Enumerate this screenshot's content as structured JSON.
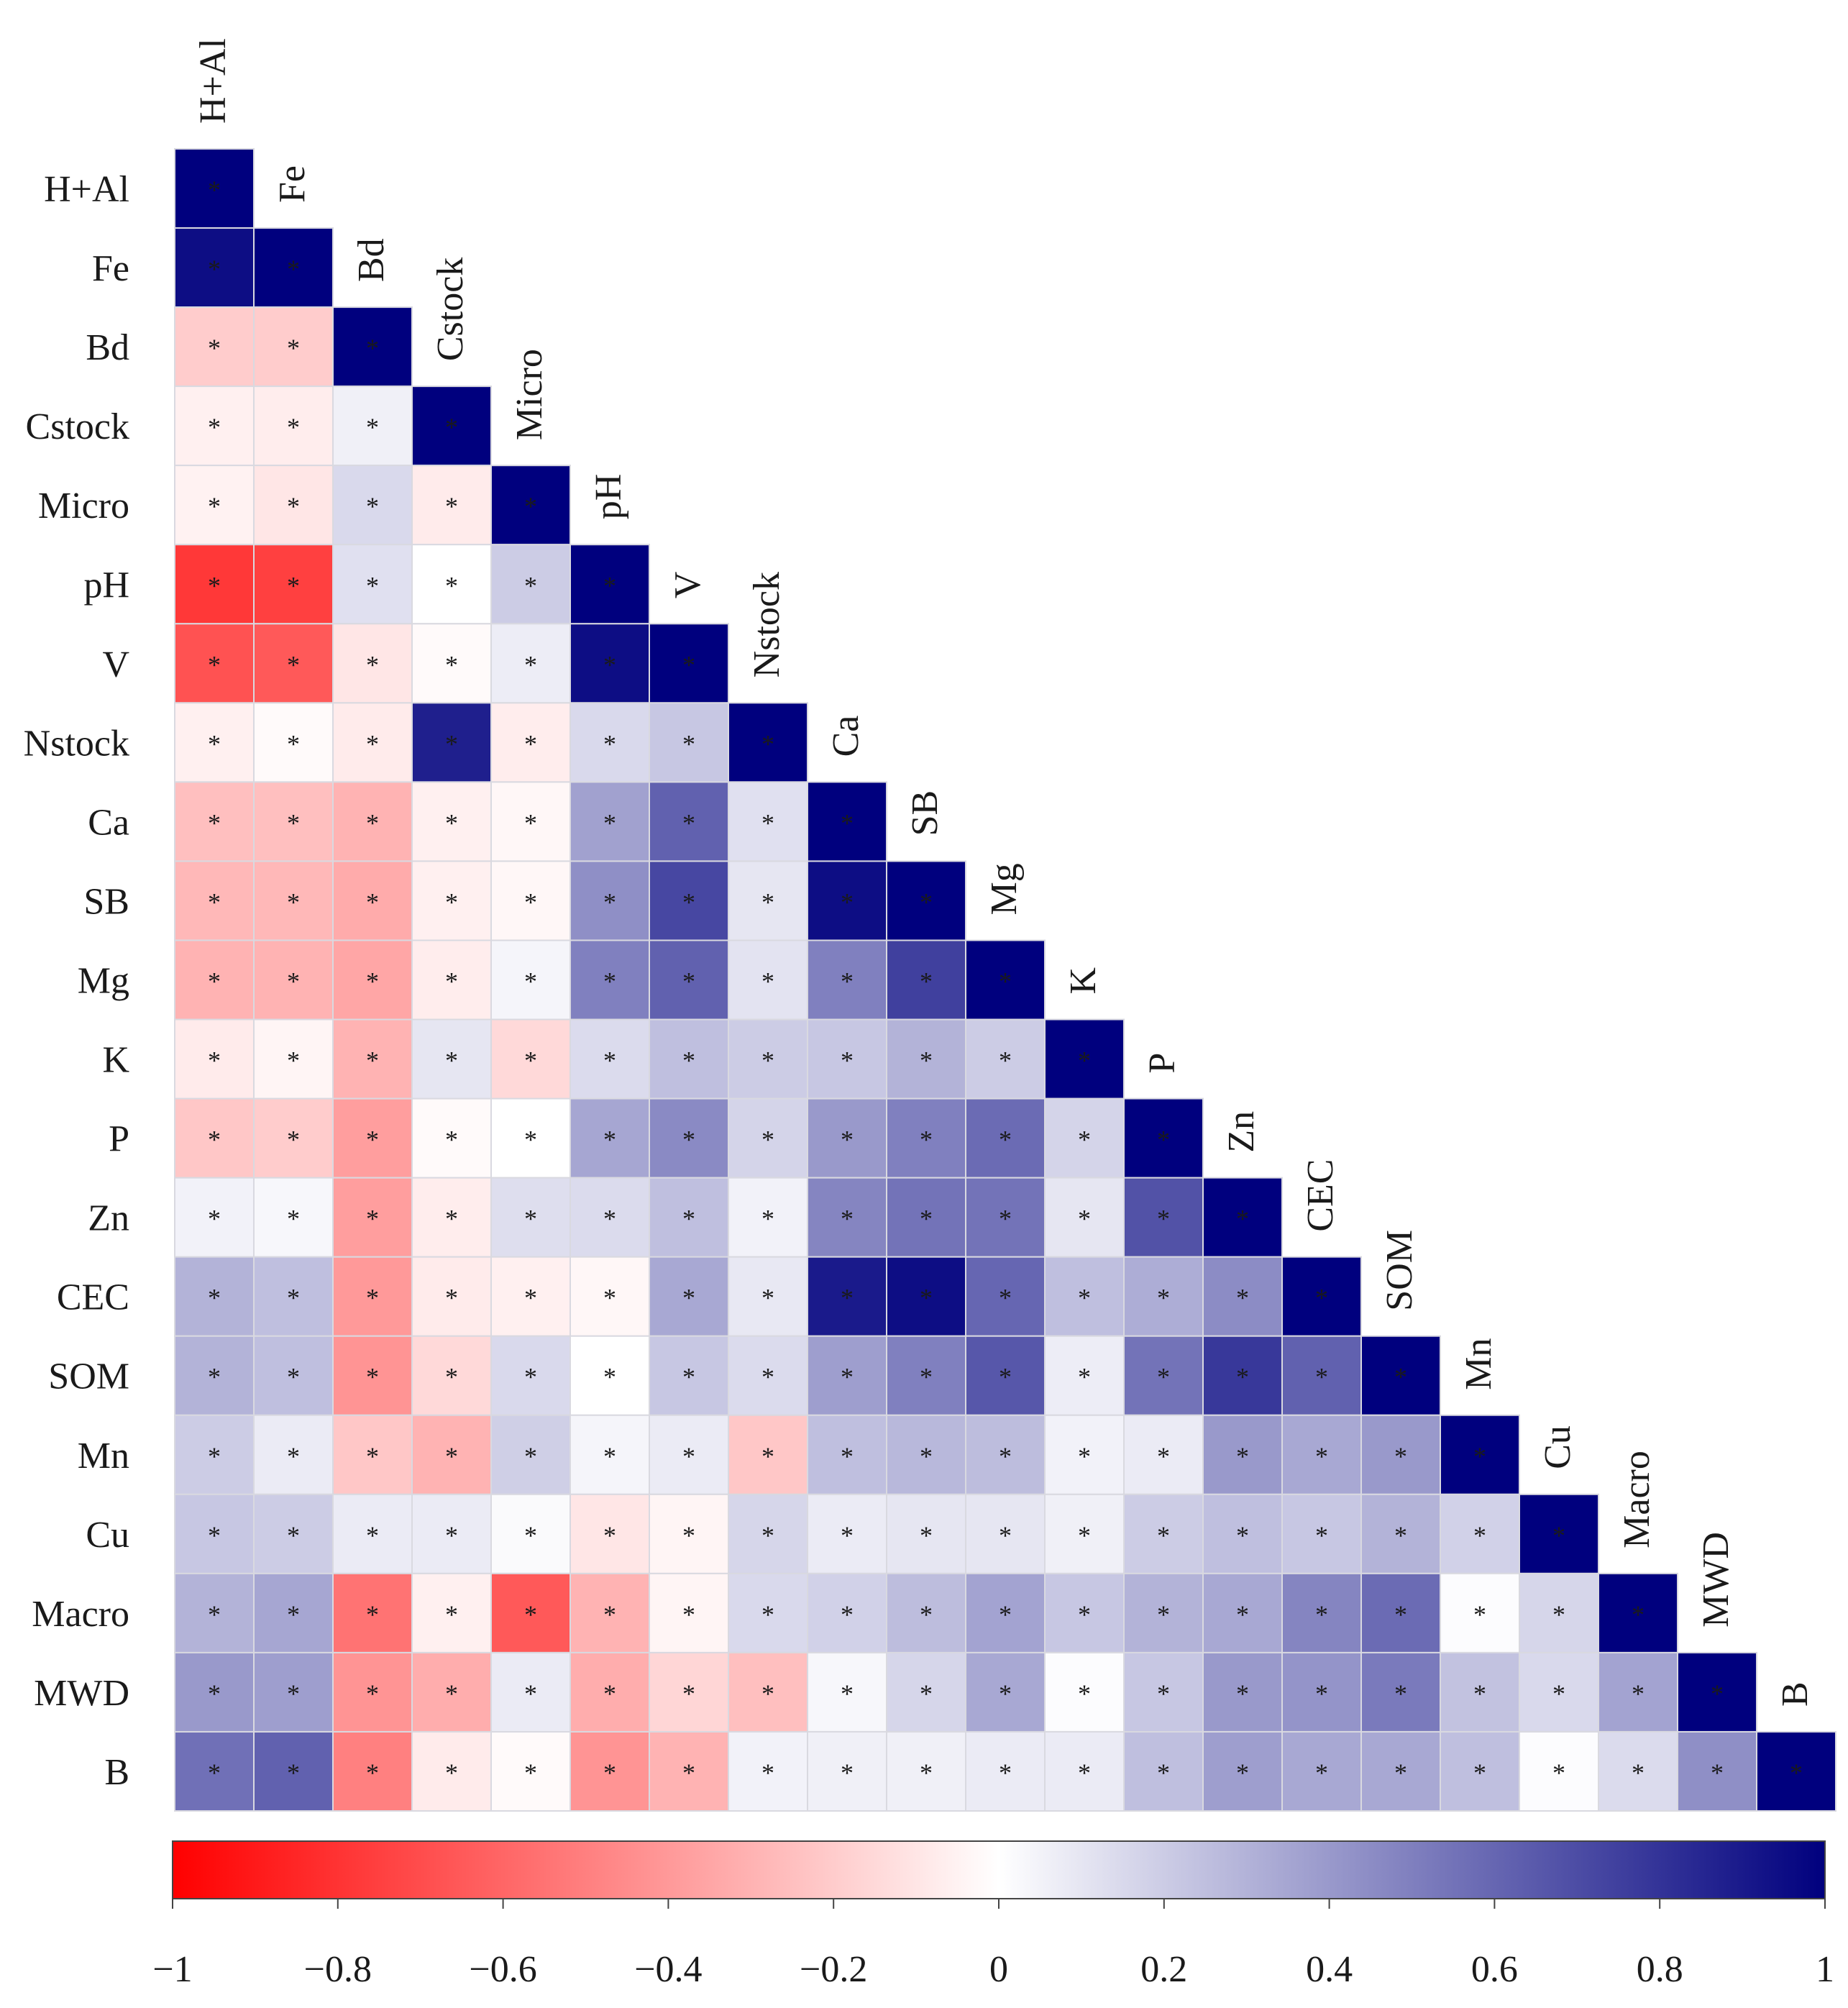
{
  "chart_data": {
    "type": "heatmap",
    "title": "",
    "variables": [
      "H+Al",
      "Fe",
      "Bd",
      "Cstock",
      "Micro",
      "pH",
      "V",
      "Nstock",
      "Ca",
      "SB",
      "Mg",
      "K",
      "P",
      "Zn",
      "CEC",
      "SOM",
      "Mn",
      "Cu",
      "Macro",
      "MWD",
      "B"
    ],
    "matrix_lower_triangle": [
      [
        1.0
      ],
      [
        0.95,
        1.0
      ],
      [
        -0.2,
        -0.2,
        1.0
      ],
      [
        -0.06,
        -0.07,
        0.06,
        1.0
      ],
      [
        -0.05,
        -0.1,
        0.15,
        -0.08,
        1.0
      ],
      [
        -0.78,
        -0.75,
        0.12,
        0.0,
        0.2,
        1.0
      ],
      [
        -0.68,
        -0.65,
        -0.1,
        -0.02,
        0.07,
        0.95,
        1.0
      ],
      [
        -0.06,
        -0.02,
        -0.08,
        0.88,
        -0.07,
        0.15,
        0.22,
        1.0
      ],
      [
        -0.25,
        -0.25,
        -0.3,
        -0.06,
        -0.03,
        0.37,
        0.62,
        0.12,
        1.0
      ],
      [
        -0.28,
        -0.28,
        -0.33,
        -0.06,
        -0.03,
        0.44,
        0.72,
        0.1,
        0.95,
        1.0
      ],
      [
        -0.3,
        -0.3,
        -0.35,
        -0.07,
        0.04,
        0.5,
        0.62,
        0.11,
        0.5,
        0.75,
        1.0
      ],
      [
        -0.08,
        -0.04,
        -0.3,
        0.1,
        -0.15,
        0.14,
        0.25,
        0.2,
        0.22,
        0.3,
        0.2,
        1.0
      ],
      [
        -0.22,
        -0.2,
        -0.38,
        -0.02,
        0.0,
        0.35,
        0.46,
        0.17,
        0.4,
        0.5,
        0.58,
        0.17,
        1.0
      ],
      [
        0.05,
        0.03,
        -0.38,
        -0.07,
        0.13,
        0.14,
        0.25,
        0.05,
        0.48,
        0.55,
        0.55,
        0.1,
        0.68,
        1.0
      ],
      [
        0.3,
        0.25,
        -0.4,
        -0.08,
        -0.06,
        -0.03,
        0.34,
        0.09,
        0.9,
        0.95,
        0.6,
        0.25,
        0.32,
        0.45,
        1.0
      ],
      [
        0.3,
        0.25,
        -0.42,
        -0.15,
        0.15,
        0.0,
        0.22,
        0.14,
        0.38,
        0.5,
        0.66,
        0.07,
        0.55,
        0.78,
        0.62,
        1.0
      ],
      [
        0.2,
        0.08,
        -0.22,
        -0.3,
        0.19,
        0.04,
        0.08,
        -0.22,
        0.25,
        0.28,
        0.26,
        0.05,
        0.08,
        0.4,
        0.34,
        0.4,
        1.0
      ],
      [
        0.22,
        0.2,
        0.08,
        0.08,
        0.02,
        -0.1,
        -0.04,
        0.16,
        0.08,
        0.1,
        0.1,
        0.06,
        0.2,
        0.25,
        0.22,
        0.3,
        0.18,
        1.0
      ],
      [
        0.3,
        0.35,
        -0.55,
        -0.06,
        -0.65,
        -0.3,
        -0.04,
        0.15,
        0.18,
        0.26,
        0.36,
        0.22,
        0.3,
        0.34,
        0.48,
        0.58,
        0.01,
        0.16,
        1.0
      ],
      [
        0.4,
        0.38,
        -0.42,
        -0.32,
        0.08,
        -0.32,
        -0.16,
        -0.25,
        0.03,
        0.16,
        0.34,
        0.01,
        0.22,
        0.4,
        0.42,
        0.52,
        0.24,
        0.15,
        0.36,
        1.0
      ],
      [
        0.56,
        0.62,
        -0.5,
        -0.08,
        -0.02,
        -0.42,
        -0.3,
        0.05,
        0.06,
        0.06,
        0.08,
        0.08,
        0.25,
        0.38,
        0.34,
        0.34,
        0.25,
        0.01,
        0.14,
        0.44,
        1.0
      ]
    ],
    "significance_marker": "*",
    "colorbar": {
      "range": [
        -1,
        1
      ],
      "ticks": [
        "−1",
        "−0.8",
        "−0.6",
        "−0.4",
        "−0.2",
        "0",
        "0.2",
        "0.4",
        "0.6",
        "0.8",
        "1"
      ],
      "colors": {
        "negative": "#ff0000",
        "zero": "#ffffff",
        "positive": "#00007e"
      }
    }
  }
}
